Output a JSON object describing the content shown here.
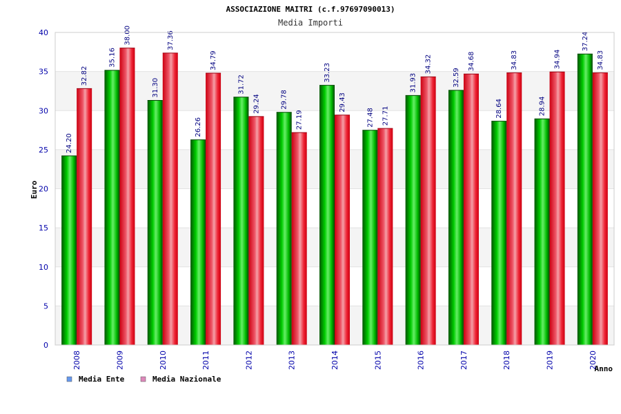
{
  "chart_data": {
    "type": "bar",
    "title": "ASSOCIAZIONE MAITRI (c.f.97697090013)",
    "subtitle": "Media Importi",
    "xlabel": "Anno",
    "ylabel": "Euro",
    "ylim": [
      0,
      40
    ],
    "yticks": [
      0,
      5,
      10,
      15,
      20,
      25,
      30,
      35,
      40
    ],
    "grid": true,
    "legend_position": "bottom-left",
    "categories": [
      "2008",
      "2009",
      "2010",
      "2011",
      "2012",
      "2013",
      "2014",
      "2015",
      "2016",
      "2017",
      "2018",
      "2019",
      "2020"
    ],
    "series": [
      {
        "name": "Media Ente",
        "color": "#00cc00",
        "legend_color": "#6699ee",
        "values": [
          24.2,
          35.16,
          31.3,
          26.26,
          31.72,
          29.78,
          33.23,
          27.48,
          31.93,
          32.59,
          28.64,
          28.94,
          37.24
        ],
        "labels": [
          "24.20",
          "35.16",
          "31.30",
          "26.26",
          "31.72",
          "29.78",
          "33.23",
          "27.48",
          "31.93",
          "32.59",
          "28.64",
          "28.94",
          "37.24"
        ]
      },
      {
        "name": "Media Nazionale",
        "color": "#ee1122",
        "legend_color": "#dd88bb",
        "values": [
          32.82,
          38.0,
          37.36,
          34.79,
          29.24,
          27.19,
          29.43,
          27.71,
          34.32,
          34.68,
          34.83,
          34.94,
          34.83
        ],
        "labels": [
          "32.82",
          "38.00",
          "37.36",
          "34.79",
          "29.24",
          "27.19",
          "29.43",
          "27.71",
          "34.32",
          "34.68",
          "34.83",
          "34.94",
          "34.83"
        ]
      }
    ]
  }
}
